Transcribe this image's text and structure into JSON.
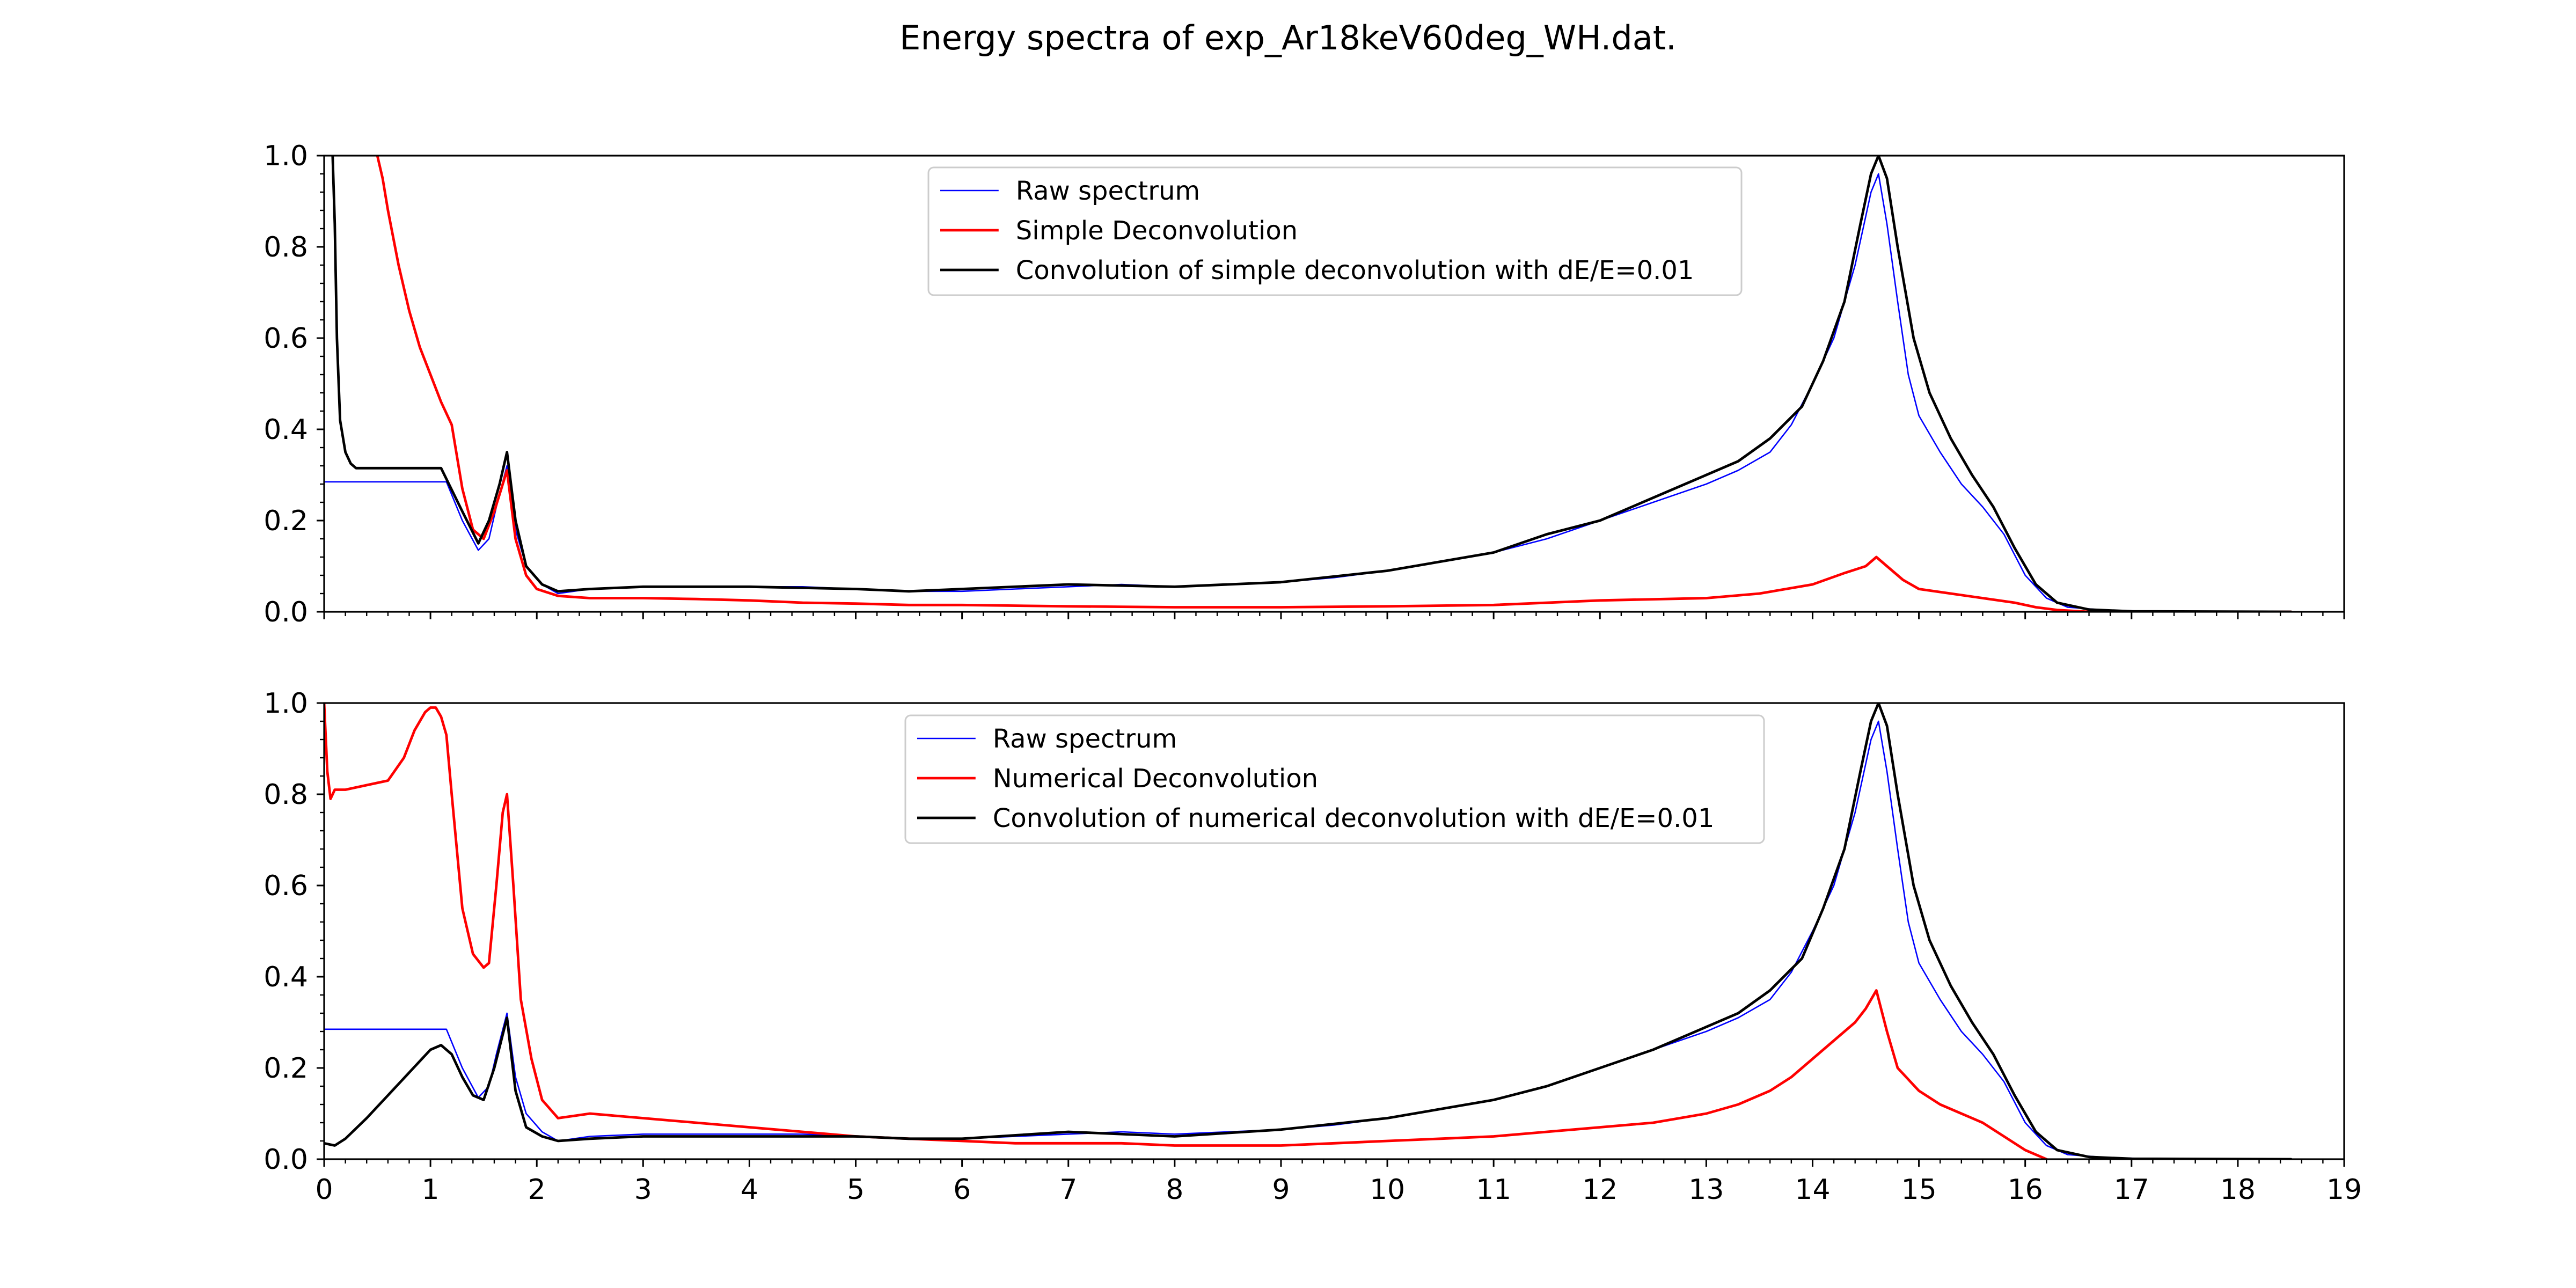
{
  "figure": {
    "title": "Energy spectra of exp_Ar18keV60deg_WH.dat."
  },
  "chart_data": [
    {
      "type": "line",
      "xlim": [
        0,
        19
      ],
      "ylim": [
        0,
        1.0
      ],
      "x_ticks": [
        0,
        1,
        2,
        3,
        4,
        5,
        6,
        7,
        8,
        9,
        10,
        11,
        12,
        13,
        14,
        15,
        16,
        17,
        18,
        19
      ],
      "x_tick_labels": [],
      "y_ticks": [
        0.0,
        0.2,
        0.4,
        0.6,
        0.8,
        1.0
      ],
      "y_tick_labels": [
        "0.0",
        "0.2",
        "0.4",
        "0.6",
        "0.8",
        "1.0"
      ],
      "legend": {
        "position": "upper-center",
        "entries": [
          "Raw spectrum",
          "Simple Deconvolution",
          "Convolution of simple deconvolution with dE/E=0.01"
        ]
      },
      "series": [
        {
          "name": "Raw spectrum",
          "color": "#0000ff",
          "width": "thin",
          "x": [
            0,
            1.05,
            1.15,
            1.3,
            1.45,
            1.55,
            1.62,
            1.72,
            1.8,
            1.9,
            2.05,
            2.2,
            2.5,
            3,
            3.5,
            4,
            4.5,
            5,
            5.5,
            6,
            6.5,
            7,
            7.5,
            8,
            8.5,
            9,
            9.5,
            10,
            10.5,
            11,
            11.5,
            12,
            12.5,
            13,
            13.3,
            13.6,
            13.8,
            14.0,
            14.2,
            14.4,
            14.55,
            14.62,
            14.7,
            14.8,
            14.9,
            15.0,
            15.2,
            15.4,
            15.6,
            15.8,
            16.0,
            16.2,
            16.4,
            16.8,
            17.5,
            18.5
          ],
          "y": [
            0.285,
            0.285,
            0.285,
            0.2,
            0.135,
            0.16,
            0.23,
            0.32,
            0.18,
            0.1,
            0.06,
            0.04,
            0.05,
            0.055,
            0.055,
            0.055,
            0.055,
            0.05,
            0.045,
            0.045,
            0.05,
            0.055,
            0.06,
            0.055,
            0.06,
            0.065,
            0.075,
            0.09,
            0.11,
            0.13,
            0.16,
            0.2,
            0.24,
            0.28,
            0.31,
            0.35,
            0.41,
            0.5,
            0.6,
            0.76,
            0.92,
            0.96,
            0.85,
            0.68,
            0.52,
            0.43,
            0.35,
            0.28,
            0.23,
            0.17,
            0.08,
            0.03,
            0.01,
            0.003,
            0.0,
            0.0
          ]
        },
        {
          "name": "Simple Deconvolution",
          "color": "#ff0000",
          "width": "normal",
          "x": [
            0.5,
            0.55,
            0.6,
            0.7,
            0.8,
            0.9,
            1.0,
            1.1,
            1.2,
            1.3,
            1.4,
            1.5,
            1.6,
            1.72,
            1.8,
            1.9,
            2.0,
            2.2,
            2.5,
            3,
            3.5,
            4,
            4.5,
            5,
            5.5,
            6,
            7,
            8,
            9,
            10,
            11,
            12,
            13,
            13.5,
            14.0,
            14.3,
            14.5,
            14.6,
            14.7,
            14.85,
            15.0,
            15.3,
            15.6,
            15.9,
            16.1,
            16.3,
            16.6,
            17,
            18,
            18.5
          ],
          "y": [
            1.0,
            0.95,
            0.88,
            0.76,
            0.66,
            0.58,
            0.52,
            0.46,
            0.41,
            0.27,
            0.18,
            0.16,
            0.22,
            0.31,
            0.16,
            0.08,
            0.05,
            0.035,
            0.03,
            0.03,
            0.028,
            0.025,
            0.02,
            0.018,
            0.015,
            0.015,
            0.012,
            0.01,
            0.01,
            0.012,
            0.015,
            0.025,
            0.03,
            0.04,
            0.06,
            0.085,
            0.1,
            0.12,
            0.1,
            0.07,
            0.05,
            0.04,
            0.03,
            0.02,
            0.01,
            0.004,
            0.0,
            0.0,
            0.0,
            0.0
          ]
        },
        {
          "name": "Convolution of simple deconvolution with dE/E=0.01",
          "color": "#000000",
          "width": "normal",
          "x": [
            0.08,
            0.1,
            0.12,
            0.15,
            0.2,
            0.25,
            0.3,
            0.5,
            0.8,
            1.1,
            1.3,
            1.45,
            1.55,
            1.65,
            1.72,
            1.8,
            1.9,
            2.05,
            2.2,
            2.5,
            3,
            4,
            5,
            5.5,
            6,
            7,
            8,
            9,
            10,
            10.5,
            11,
            11.5,
            12,
            12.5,
            13,
            13.3,
            13.6,
            13.9,
            14.1,
            14.3,
            14.45,
            14.55,
            14.62,
            14.7,
            14.8,
            14.95,
            15.1,
            15.3,
            15.5,
            15.7,
            15.9,
            16.1,
            16.3,
            16.6,
            17,
            18.5
          ],
          "y": [
            1.0,
            0.85,
            0.6,
            0.42,
            0.35,
            0.325,
            0.315,
            0.315,
            0.315,
            0.315,
            0.22,
            0.15,
            0.2,
            0.28,
            0.35,
            0.2,
            0.1,
            0.06,
            0.045,
            0.05,
            0.055,
            0.055,
            0.05,
            0.045,
            0.05,
            0.06,
            0.055,
            0.065,
            0.09,
            0.11,
            0.13,
            0.17,
            0.2,
            0.25,
            0.3,
            0.33,
            0.38,
            0.45,
            0.55,
            0.68,
            0.85,
            0.96,
            1.0,
            0.95,
            0.8,
            0.6,
            0.48,
            0.38,
            0.3,
            0.23,
            0.14,
            0.06,
            0.02,
            0.005,
            0.001,
            0.0
          ]
        }
      ]
    },
    {
      "type": "line",
      "xlim": [
        0,
        19
      ],
      "ylim": [
        0,
        1.0
      ],
      "x_ticks": [
        0,
        1,
        2,
        3,
        4,
        5,
        6,
        7,
        8,
        9,
        10,
        11,
        12,
        13,
        14,
        15,
        16,
        17,
        18,
        19
      ],
      "x_tick_labels": [
        "0",
        "1",
        "2",
        "3",
        "4",
        "5",
        "6",
        "7",
        "8",
        "9",
        "10",
        "11",
        "12",
        "13",
        "14",
        "15",
        "16",
        "17",
        "18",
        "19"
      ],
      "y_ticks": [
        0.0,
        0.2,
        0.4,
        0.6,
        0.8,
        1.0
      ],
      "y_tick_labels": [
        "0.0",
        "0.2",
        "0.4",
        "0.6",
        "0.8",
        "1.0"
      ],
      "legend": {
        "position": "upper-center",
        "entries": [
          "Raw spectrum",
          "Numerical Deconvolution",
          "Convolution of numerical deconvolution with dE/E=0.01"
        ]
      },
      "series": [
        {
          "name": "Raw spectrum",
          "color": "#0000ff",
          "width": "thin",
          "x": [
            0,
            1.05,
            1.15,
            1.3,
            1.45,
            1.55,
            1.62,
            1.72,
            1.8,
            1.9,
            2.05,
            2.2,
            2.5,
            3,
            3.5,
            4,
            4.5,
            5,
            5.5,
            6,
            6.5,
            7,
            7.5,
            8,
            8.5,
            9,
            9.5,
            10,
            10.5,
            11,
            11.5,
            12,
            12.5,
            13,
            13.3,
            13.6,
            13.8,
            14.0,
            14.2,
            14.4,
            14.55,
            14.62,
            14.7,
            14.8,
            14.9,
            15.0,
            15.2,
            15.4,
            15.6,
            15.8,
            16.0,
            16.2,
            16.4,
            16.8,
            17.5,
            18.5
          ],
          "y": [
            0.285,
            0.285,
            0.285,
            0.2,
            0.135,
            0.16,
            0.23,
            0.32,
            0.18,
            0.1,
            0.06,
            0.04,
            0.05,
            0.055,
            0.055,
            0.055,
            0.055,
            0.05,
            0.045,
            0.045,
            0.05,
            0.055,
            0.06,
            0.055,
            0.06,
            0.065,
            0.075,
            0.09,
            0.11,
            0.13,
            0.16,
            0.2,
            0.24,
            0.28,
            0.31,
            0.35,
            0.41,
            0.5,
            0.6,
            0.76,
            0.92,
            0.96,
            0.85,
            0.68,
            0.52,
            0.43,
            0.35,
            0.28,
            0.23,
            0.17,
            0.08,
            0.03,
            0.01,
            0.003,
            0.0,
            0.0
          ]
        },
        {
          "name": "Numerical Deconvolution",
          "color": "#ff0000",
          "width": "normal",
          "x": [
            0,
            0.03,
            0.06,
            0.1,
            0.2,
            0.4,
            0.6,
            0.75,
            0.85,
            0.95,
            1.0,
            1.05,
            1.1,
            1.15,
            1.2,
            1.3,
            1.4,
            1.5,
            1.55,
            1.62,
            1.68,
            1.72,
            1.78,
            1.85,
            1.95,
            2.05,
            2.2,
            2.5,
            3,
            3.5,
            4,
            4.5,
            5,
            5.5,
            6,
            6.5,
            7,
            7.5,
            8,
            8.5,
            9,
            9.5,
            10,
            10.5,
            11,
            11.5,
            12,
            12.5,
            13,
            13.3,
            13.6,
            13.8,
            14.0,
            14.2,
            14.4,
            14.5,
            14.6,
            14.7,
            14.8,
            15.0,
            15.2,
            15.4,
            15.6,
            15.8,
            16.0,
            16.2
          ],
          "y": [
            1.0,
            0.85,
            0.79,
            0.81,
            0.81,
            0.82,
            0.83,
            0.88,
            0.94,
            0.98,
            0.99,
            0.99,
            0.97,
            0.93,
            0.8,
            0.55,
            0.45,
            0.42,
            0.43,
            0.6,
            0.76,
            0.8,
            0.6,
            0.35,
            0.22,
            0.13,
            0.09,
            0.1,
            0.09,
            0.08,
            0.07,
            0.06,
            0.05,
            0.045,
            0.04,
            0.035,
            0.035,
            0.035,
            0.03,
            0.03,
            0.03,
            0.035,
            0.04,
            0.045,
            0.05,
            0.06,
            0.07,
            0.08,
            0.1,
            0.12,
            0.15,
            0.18,
            0.22,
            0.26,
            0.3,
            0.33,
            0.37,
            0.28,
            0.2,
            0.15,
            0.12,
            0.1,
            0.08,
            0.05,
            0.02,
            0.0
          ]
        },
        {
          "name": "Convolution of numerical deconvolution with dE/E=0.01",
          "color": "#000000",
          "width": "normal",
          "x": [
            0,
            0.1,
            0.2,
            0.4,
            0.6,
            0.8,
            1.0,
            1.1,
            1.2,
            1.3,
            1.4,
            1.5,
            1.6,
            1.72,
            1.8,
            1.9,
            2.05,
            2.2,
            2.5,
            3,
            4,
            5,
            5.5,
            6,
            7,
            8,
            9,
            10,
            10.5,
            11,
            11.5,
            12,
            12.5,
            13,
            13.3,
            13.6,
            13.9,
            14.1,
            14.3,
            14.45,
            14.55,
            14.62,
            14.7,
            14.8,
            14.95,
            15.1,
            15.3,
            15.5,
            15.7,
            15.9,
            16.1,
            16.3,
            16.6,
            17,
            18.5
          ],
          "y": [
            0.035,
            0.03,
            0.045,
            0.09,
            0.14,
            0.19,
            0.24,
            0.25,
            0.23,
            0.18,
            0.14,
            0.13,
            0.2,
            0.31,
            0.15,
            0.07,
            0.05,
            0.04,
            0.045,
            0.05,
            0.05,
            0.05,
            0.045,
            0.045,
            0.06,
            0.05,
            0.065,
            0.09,
            0.11,
            0.13,
            0.16,
            0.2,
            0.24,
            0.29,
            0.32,
            0.37,
            0.44,
            0.55,
            0.68,
            0.85,
            0.96,
            1.0,
            0.95,
            0.8,
            0.6,
            0.48,
            0.38,
            0.3,
            0.23,
            0.14,
            0.06,
            0.02,
            0.005,
            0.001,
            0.0
          ]
        }
      ]
    }
  ]
}
